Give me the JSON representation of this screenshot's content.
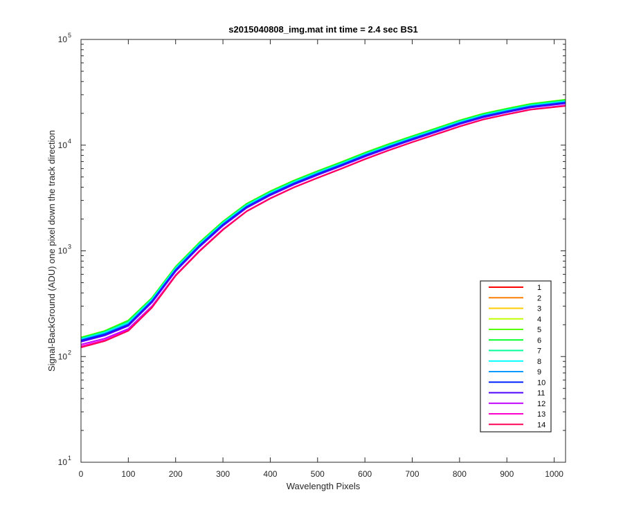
{
  "chart_data": {
    "type": "line",
    "title": "s2015040808_img.mat int time = 2.4 sec   BS1",
    "xlabel": "Wavelength Pixels",
    "ylabel": "Signal-BackGround (ADU) one pixel down the track direction",
    "xlim": [
      0,
      1024
    ],
    "ylim": [
      10,
      100000
    ],
    "yscale": "log",
    "xticks": [
      0,
      100,
      200,
      300,
      400,
      500,
      600,
      700,
      800,
      900,
      1000
    ],
    "xtick_labels": [
      "0",
      "100",
      "200",
      "300",
      "400",
      "500",
      "600",
      "700",
      "800",
      "900",
      "1000"
    ],
    "yticks": [
      10,
      100,
      1000,
      10000,
      100000
    ],
    "ytick_base": "10",
    "ytick_exponents": [
      "1",
      "2",
      "3",
      "4",
      "5"
    ],
    "grid": false,
    "legend_position": "bottom-right",
    "x": [
      0,
      50,
      100,
      150,
      200,
      250,
      300,
      350,
      400,
      450,
      500,
      550,
      600,
      650,
      700,
      750,
      800,
      850,
      900,
      950,
      1024
    ],
    "series": [
      {
        "name": "1",
        "color": "#ff0000",
        "values": [
          140,
          160,
          200,
          330,
          650,
          1100,
          1750,
          2600,
          3400,
          4300,
          5300,
          6400,
          7900,
          9500,
          11300,
          13400,
          16000,
          18500,
          20600,
          22800,
          25000
        ]
      },
      {
        "name": "2",
        "color": "#ff7f00",
        "values": [
          145,
          165,
          205,
          340,
          670,
          1130,
          1800,
          2650,
          3480,
          4400,
          5400,
          6550,
          8050,
          9700,
          11550,
          13700,
          16300,
          18900,
          21000,
          23200,
          25500
        ]
      },
      {
        "name": "3",
        "color": "#ffcc00",
        "values": [
          148,
          168,
          210,
          345,
          680,
          1150,
          1820,
          2680,
          3520,
          4450,
          5480,
          6650,
          8150,
          9800,
          11700,
          13850,
          16500,
          19100,
          21300,
          23600,
          26000
        ]
      },
      {
        "name": "4",
        "color": "#bfff00",
        "values": [
          150,
          172,
          215,
          355,
          700,
          1180,
          1870,
          2750,
          3600,
          4560,
          5600,
          6800,
          8350,
          10050,
          12000,
          14200,
          16900,
          19600,
          21800,
          24100,
          26500
        ]
      },
      {
        "name": "5",
        "color": "#55ff00",
        "values": [
          152,
          175,
          220,
          360,
          710,
          1200,
          1900,
          2800,
          3670,
          4640,
          5700,
          6930,
          8500,
          10250,
          12200,
          14450,
          17200,
          19900,
          22200,
          24600,
          27000
        ]
      },
      {
        "name": "6",
        "color": "#00ff2a",
        "values": [
          150,
          173,
          217,
          355,
          700,
          1185,
          1880,
          2770,
          3630,
          4590,
          5640,
          6860,
          8400,
          10150,
          12100,
          14300,
          17000,
          19700,
          22000,
          24300,
          26700
        ]
      },
      {
        "name": "7",
        "color": "#00ff99",
        "values": [
          148,
          170,
          212,
          350,
          690,
          1165,
          1850,
          2720,
          3570,
          4510,
          5540,
          6730,
          8250,
          9950,
          11850,
          14050,
          16700,
          19350,
          21600,
          23900,
          26200
        ]
      },
      {
        "name": "8",
        "color": "#00ffff",
        "values": [
          146,
          168,
          208,
          345,
          680,
          1150,
          1825,
          2690,
          3530,
          4460,
          5480,
          6660,
          8160,
          9850,
          11750,
          13900,
          16550,
          19150,
          21400,
          23700,
          26000
        ]
      },
      {
        "name": "9",
        "color": "#0099ff",
        "values": [
          144,
          165,
          204,
          338,
          668,
          1130,
          1795,
          2640,
          3470,
          4390,
          5400,
          6560,
          8050,
          9700,
          11580,
          13700,
          16300,
          18900,
          21100,
          23400,
          25600
        ]
      },
      {
        "name": "10",
        "color": "#0022ff",
        "values": [
          142,
          162,
          200,
          332,
          655,
          1110,
          1765,
          2600,
          3420,
          4330,
          5320,
          6470,
          7950,
          9580,
          11430,
          13530,
          16100,
          18650,
          20800,
          23100,
          25200
        ]
      },
      {
        "name": "11",
        "color": "#4c00ff",
        "values": [
          138,
          158,
          195,
          325,
          640,
          1085,
          1725,
          2545,
          3350,
          4240,
          5210,
          6340,
          7790,
          9400,
          11200,
          13280,
          15800,
          18300,
          20450,
          22700,
          24800
        ]
      },
      {
        "name": "12",
        "color": "#bf00ff",
        "values": [
          130,
          148,
          183,
          300,
          590,
          1000,
          1600,
          2380,
          3150,
          4000,
          4920,
          6000,
          7400,
          8950,
          10700,
          12700,
          15100,
          17550,
          19600,
          21800,
          23800
        ]
      },
      {
        "name": "13",
        "color": "#ff00cc",
        "values": [
          125,
          143,
          178,
          295,
          585,
          995,
          1590,
          2370,
          3140,
          3990,
          4910,
          5990,
          7380,
          8930,
          10680,
          12670,
          15050,
          17500,
          19550,
          21700,
          23600
        ]
      },
      {
        "name": "14",
        "color": "#ff0055",
        "values": [
          122,
          140,
          175,
          290,
          580,
          985,
          1580,
          2360,
          3120,
          3970,
          4890,
          5970,
          7350,
          8900,
          10650,
          12630,
          15000,
          17450,
          19500,
          21650,
          23500
        ]
      }
    ]
  }
}
